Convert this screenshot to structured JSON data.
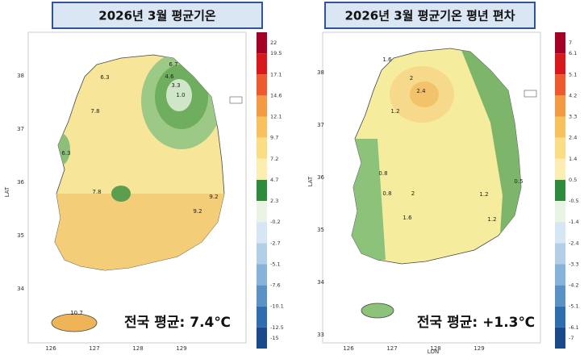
{
  "panels": [
    {
      "title": "2026년 3월 평균기온",
      "y_label": "LAT",
      "lat_ticks": [
        "38",
        "37",
        "36",
        "35",
        "34"
      ],
      "lon_ticks": [
        "126",
        "127",
        "128",
        "129"
      ],
      "colorbar_labels": [
        "22",
        "19.5",
        "17.1",
        "14.6",
        "12.1",
        "9.7",
        "7.2",
        "4.7",
        "2.3",
        "-0.2",
        "-2.7",
        "-5.1",
        "-7.6",
        "-10.1",
        "-12.5",
        "-15"
      ],
      "colorbar_colors": [
        "#a50026",
        "#d7191c",
        "#ec5a2e",
        "#f39a45",
        "#f7c15e",
        "#fadd84",
        "#fbeeb0",
        "#2e8b3e",
        "#eaf4e4",
        "#d6e6f4",
        "#b3cfe8",
        "#86b3d9",
        "#5a92c6",
        "#2f6eae",
        "#1a4a8a"
      ],
      "contour_labels": [
        "6.7",
        "4.6",
        "3.3",
        "1.0",
        "6.3",
        "7.8",
        "6.3",
        "7.8",
        "9.2",
        "9.2",
        "10.7"
      ],
      "average": "전국 평균: 7.4℃"
    },
    {
      "title": "2026년 3월 평균기온 평년 편차",
      "y_label": "LAT",
      "x_label": "LON",
      "lat_ticks": [
        "38",
        "37",
        "36",
        "35",
        "34",
        "33"
      ],
      "lon_ticks": [
        "126",
        "127",
        "128",
        "129"
      ],
      "colorbar_labels": [
        "7",
        "6.1",
        "5.1",
        "4.2",
        "3.3",
        "2.4",
        "1.4",
        "0.5",
        "-0.5",
        "-1.4",
        "-2.4",
        "-3.3",
        "-4.2",
        "-5.1",
        "-6.1",
        "-7"
      ],
      "colorbar_colors": [
        "#a50026",
        "#d7191c",
        "#ec5a2e",
        "#f39a45",
        "#f7c15e",
        "#fadd84",
        "#fbeeb0",
        "#2e8b3e",
        "#eaf4e4",
        "#d6e6f4",
        "#b3cfe8",
        "#86b3d9",
        "#5a92c6",
        "#2f6eae",
        "#1a4a8a"
      ],
      "contour_labels": [
        "1.6",
        "2",
        "2.4",
        "1.2",
        "0.8",
        "0.8",
        "2",
        "1.6",
        "1.2",
        "1.2",
        "0.5"
      ],
      "average": "전국 평균: +1.3℃"
    }
  ]
}
